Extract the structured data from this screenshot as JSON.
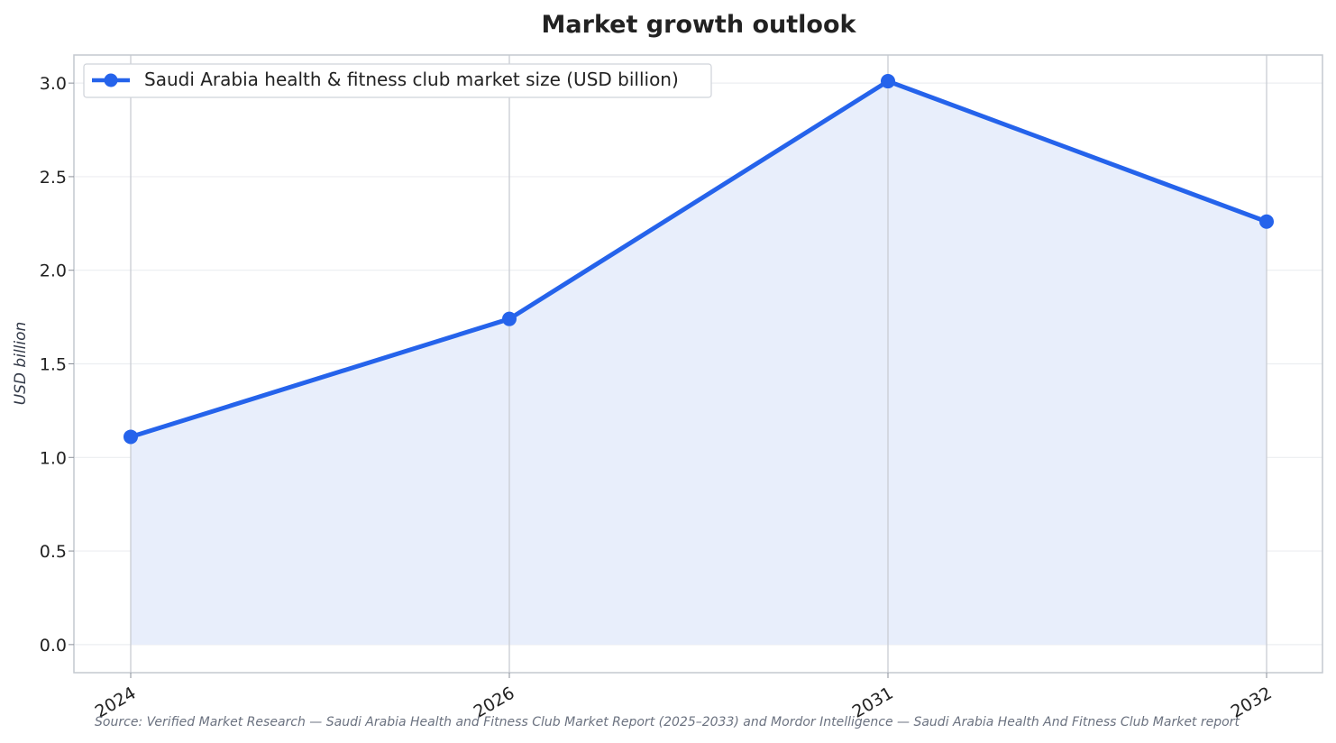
{
  "chart_data": {
    "type": "line",
    "title": "Market growth outlook",
    "xlabel": "",
    "ylabel": "USD billion",
    "categories": [
      "2024",
      "2026",
      "2031",
      "2032"
    ],
    "series": [
      {
        "name": "Saudi Arabia health & fitness club market size (USD billion)",
        "values": [
          1.11,
          1.74,
          3.01,
          2.26
        ],
        "color": "#2563eb",
        "fill": "#e8eefb"
      }
    ],
    "ylim": [
      -0.15,
      3.15
    ],
    "yticks": [
      "0.0",
      "0.5",
      "1.0",
      "1.5",
      "2.0",
      "2.5",
      "3.0"
    ],
    "grid": true,
    "legend": "top-left",
    "area_fill": true,
    "source": "Source: Verified Market Research — Saudi Arabia Health and Fitness Club Market Report (2025–2033) and Mordor Intelligence — Saudi Arabia Health And Fitness Club Market report"
  }
}
